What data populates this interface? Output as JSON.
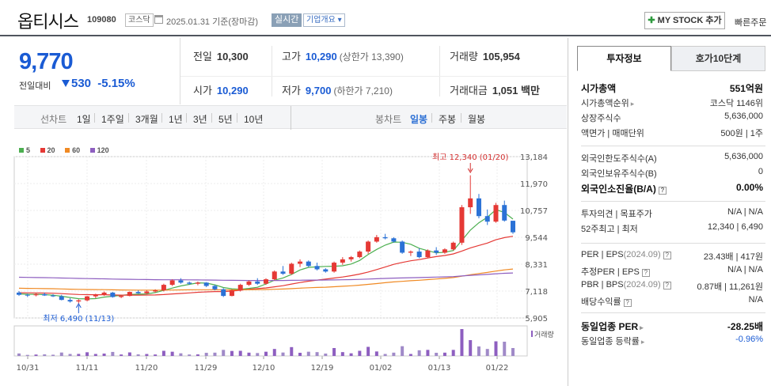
{
  "header": {
    "name": "옵티시스",
    "code": "109080",
    "market": "코스닥",
    "date": "2025.01.31 기준(장마감)",
    "realtime": "실시간",
    "company_info": "기업개요",
    "my_stock": "MY STOCK 추가",
    "quick_order": "빠른주문"
  },
  "price": {
    "current": "9,770",
    "label": "전일대비",
    "change": "530",
    "change_pct": "-5.15%"
  },
  "info": {
    "prev_label": "전일",
    "prev": "10,300",
    "high_label": "고가",
    "high": "10,290",
    "upper_limit": "(상한가 13,390)",
    "volume_label": "거래량",
    "volume": "105,954",
    "open_label": "시가",
    "open": "10,290",
    "low_label": "저가",
    "low": "9,700",
    "lower_limit": "(하한가 7,210)",
    "amount_label": "거래대금",
    "amount": "1,051 백만"
  },
  "period_bar": {
    "line_chart": "선차트",
    "periods": [
      "1일",
      "1주일",
      "3개월",
      "1년",
      "3년",
      "5년",
      "10년"
    ],
    "candle_chart": "봉차트",
    "candle_periods": [
      "일봉",
      "주봉",
      "월봉"
    ],
    "selected": "일봉"
  },
  "legend": [
    {
      "name": "5",
      "color": "#4caf50"
    },
    {
      "name": "20",
      "color": "#e53935"
    },
    {
      "name": "60",
      "color": "#f08a24"
    },
    {
      "name": "120",
      "color": "#8e5fc0"
    }
  ],
  "chart_data": {
    "type": "candlestick",
    "y_ticks": [
      "13,184",
      "11,970",
      "10,757",
      "9,544",
      "8,331",
      "7,118",
      "5,905"
    ],
    "ylim": [
      5905,
      13184
    ],
    "x_ticks": [
      "10/31",
      "11/11",
      "11/20",
      "11/29",
      "12/10",
      "12/19",
      "01/02",
      "01/13",
      "01/22"
    ],
    "high_annotation": "최고 12,340 (01/20)",
    "low_annotation": "최저 6,490 (11/13)",
    "volume_label": "거래량",
    "candles": [
      [
        7050,
        7120,
        6900,
        6950
      ],
      [
        6950,
        7000,
        6850,
        6930
      ],
      [
        6930,
        7020,
        6880,
        6980
      ],
      [
        6980,
        7050,
        6900,
        6920
      ],
      [
        6920,
        6980,
        6850,
        6880
      ],
      [
        6880,
        6950,
        6700,
        6720
      ],
      [
        6720,
        6800,
        6600,
        6650
      ],
      [
        6650,
        6750,
        6490,
        6700
      ],
      [
        6700,
        6900,
        6650,
        6880
      ],
      [
        6880,
        7000,
        6800,
        6950
      ],
      [
        6950,
        7100,
        6900,
        7050
      ],
      [
        7050,
        7080,
        6820,
        6850
      ],
      [
        6850,
        6950,
        6800,
        6900
      ],
      [
        6900,
        7100,
        6880,
        7080
      ],
      [
        7080,
        7150,
        7000,
        7020
      ],
      [
        7020,
        7150,
        6980,
        7100
      ],
      [
        7100,
        7200,
        7050,
        7150
      ],
      [
        7150,
        7450,
        7100,
        7400
      ],
      [
        7400,
        7650,
        7350,
        7600
      ],
      [
        7600,
        7700,
        7450,
        7500
      ],
      [
        7500,
        7550,
        7400,
        7450
      ],
      [
        7450,
        7550,
        7380,
        7500
      ],
      [
        7500,
        7520,
        7300,
        7350
      ],
      [
        7350,
        7400,
        7150,
        7200
      ],
      [
        7200,
        7250,
        6850,
        6900
      ],
      [
        6900,
        7200,
        6880,
        7150
      ],
      [
        7150,
        7450,
        7100,
        7400
      ],
      [
        7400,
        7600,
        7350,
        7550
      ],
      [
        7550,
        7700,
        7400,
        7450
      ],
      [
        7450,
        7700,
        7400,
        7650
      ],
      [
        7650,
        8050,
        7600,
        8000
      ],
      [
        8000,
        8250,
        7850,
        7900
      ],
      [
        7900,
        8400,
        7850,
        8350
      ],
      [
        8350,
        8550,
        8200,
        8450
      ],
      [
        8450,
        8500,
        8200,
        8250
      ],
      [
        8250,
        8400,
        8050,
        8100
      ],
      [
        8100,
        8150,
        7950,
        8000
      ],
      [
        8000,
        8450,
        7950,
        8400
      ],
      [
        8400,
        8650,
        8300,
        8550
      ],
      [
        8550,
        8700,
        8450,
        8650
      ],
      [
        8650,
        8950,
        8600,
        8900
      ],
      [
        8900,
        9400,
        8800,
        9350
      ],
      [
        9350,
        9650,
        9300,
        9550
      ],
      [
        9550,
        9700,
        9450,
        9500
      ],
      [
        9500,
        9550,
        9300,
        9350
      ],
      [
        9350,
        9400,
        8800,
        8850
      ],
      [
        8850,
        8950,
        8700,
        8900
      ],
      [
        8900,
        9050,
        8600,
        8650
      ],
      [
        8650,
        9000,
        8600,
        8950
      ],
      [
        8950,
        9100,
        8750,
        8850
      ],
      [
        8850,
        9050,
        8800,
        9000
      ],
      [
        9000,
        9350,
        8950,
        9300
      ],
      [
        9300,
        11000,
        9200,
        10900
      ],
      [
        10900,
        12340,
        10600,
        11300
      ],
      [
        11300,
        11500,
        10400,
        10500
      ],
      [
        10500,
        10800,
        10100,
        10250
      ],
      [
        10250,
        11100,
        10200,
        11000
      ],
      [
        11000,
        11200,
        10250,
        10300
      ],
      [
        10290,
        10290,
        9700,
        9770
      ]
    ]
  },
  "panel": {
    "tab_active": "투자정보",
    "tab_other": "호가10단계",
    "rows1": [
      {
        "k": "시가총액",
        "v": "551억원",
        "bold": true
      },
      {
        "k": "시가총액순위",
        "v": "코스닥 1146위",
        "arrow": true
      },
      {
        "k": "상장주식수",
        "v": "5,636,000"
      },
      {
        "k": "액면가 | 매매단위",
        "v": "500원 | 1주"
      }
    ],
    "rows2": [
      {
        "k": "외국인한도주식수(A)",
        "v": "5,636,000"
      },
      {
        "k": "외국인보유주식수(B)",
        "v": "0"
      },
      {
        "k": "외국인소진율(B/A)",
        "v": "0.00%",
        "bold": true
      }
    ],
    "rows3": [
      {
        "k": "투자의견 | 목표주가",
        "v": "N/A | N/A"
      },
      {
        "k": "52주최고 | 최저",
        "v": "12,340 | 6,490"
      }
    ],
    "rows4": [
      {
        "k": "PER | EPS",
        "k2": "(2024.09)",
        "v": "23.43배 | 417원"
      },
      {
        "k": "추정PER | EPS",
        "v": "N/A | N/A"
      },
      {
        "k": "PBR | BPS",
        "k2": "(2024.09)",
        "v": "0.87배 | 11,261원"
      },
      {
        "k": "배당수익률",
        "v": "N/A"
      }
    ],
    "rows5": [
      {
        "k": "동일업종 PER",
        "v": "-28.25배",
        "bold": true
      },
      {
        "k": "동일업종 등락률",
        "v": "-0.96%",
        "blue": true
      }
    ]
  }
}
